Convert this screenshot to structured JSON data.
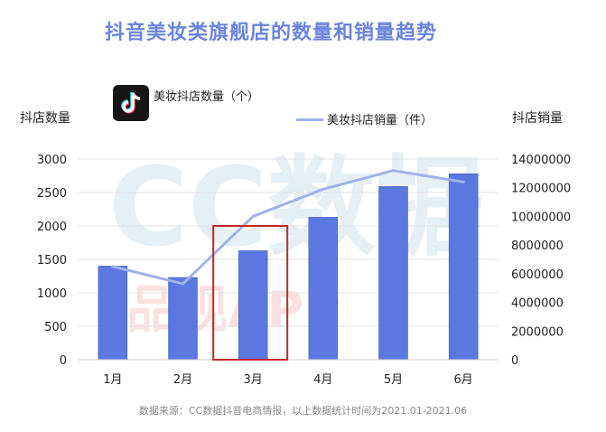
{
  "title": "抖音美妆类旗舰店的数量和销量趋势",
  "left_axis_title": "抖店数量",
  "right_axis_title": "抖店销量",
  "source": "数据来源：CC数据抖音电商情报，以上数据统计时间为2021.01-2021.06",
  "watermark": {
    "main": "CC数据",
    "sub": "品观APP"
  },
  "icons": {
    "legend_bar_icon": "tiktok-logo-icon"
  },
  "colors": {
    "bar": "#5b78e0",
    "line": "#9fb2ea",
    "highlight": "#c0272d",
    "title": "#6a85e0"
  },
  "chart_data": {
    "type": "bar",
    "title": "抖音美妆类旗舰店的数量和销量趋势",
    "categories": [
      "1月",
      "2月",
      "3月",
      "4月",
      "5月",
      "6月"
    ],
    "series": [
      {
        "name": "美妆抖店数量（个）",
        "type": "bar",
        "axis": "left",
        "values": [
          1400,
          1230,
          1630,
          2130,
          2590,
          2780
        ]
      },
      {
        "name": "美妆抖店销量（件）",
        "type": "line",
        "axis": "right",
        "values": [
          6500000,
          5300000,
          10000000,
          11900000,
          13200000,
          12400000
        ]
      }
    ],
    "y_left": {
      "label": "抖店数量",
      "ylim": [
        0,
        3000
      ],
      "ticks": [
        "0",
        "500",
        "1000",
        "1500",
        "2000",
        "2500",
        "3000"
      ]
    },
    "y_right": {
      "label": "抖店销量",
      "ylim": [
        0,
        14000000
      ],
      "ticks": [
        "0",
        "2000000",
        "4000000",
        "6000000",
        "8000000",
        "10000000",
        "12000000",
        "14000000"
      ]
    },
    "grid": true,
    "legend": "top",
    "highlight_category": "3月"
  }
}
